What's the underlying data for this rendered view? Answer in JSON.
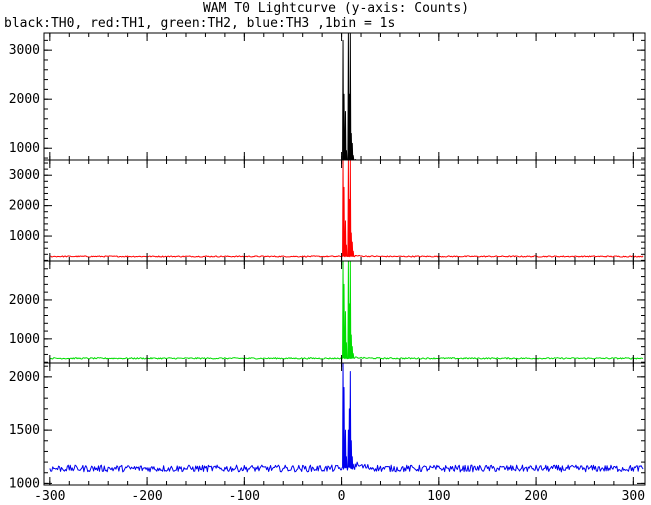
{
  "chart_data": {
    "type": "line",
    "title": "WAM T0 Lightcurve (y-axis: Counts)",
    "subtitle": "black:TH0, red:TH1, green:TH2, blue:TH3 ,1bin = 1s",
    "xlabel": "",
    "ylabel": "",
    "xlim": [
      -306,
      312
    ],
    "x_ticks": [
      -300,
      -200,
      -100,
      0,
      100,
      200,
      300
    ],
    "grid": false,
    "panels": [
      {
        "name": "TH0",
        "color": "#000000",
        "ylim": [
          760,
          3350
        ],
        "y_ticks": [
          1000,
          2000,
          3000
        ],
        "baseline": 725,
        "noise": 22,
        "peaks": [
          {
            "x": 1.5,
            "y": 3200
          },
          {
            "x": 2.5,
            "y": 2100
          },
          {
            "x": 4,
            "y": 1750
          },
          {
            "x": 5,
            "y": 950
          },
          {
            "x": 7,
            "y": 3380
          },
          {
            "x": 8,
            "y": 2100
          },
          {
            "x": 9,
            "y": 3380
          },
          {
            "x": 10,
            "y": 1300
          },
          {
            "x": 11,
            "y": 1100
          },
          {
            "x": 12,
            "y": 850
          }
        ]
      },
      {
        "name": "TH1",
        "color": "#ff0000",
        "ylim": [
          180,
          3500
        ],
        "y_ticks": [
          1000,
          2000,
          3000
        ],
        "baseline": 330,
        "noise": 20,
        "peaks": [
          {
            "x": 1.5,
            "y": 3500
          },
          {
            "x": 2.5,
            "y": 2600
          },
          {
            "x": 4,
            "y": 1500
          },
          {
            "x": 5,
            "y": 700
          },
          {
            "x": 7,
            "y": 3500
          },
          {
            "x": 8,
            "y": 2200
          },
          {
            "x": 9,
            "y": 3500
          },
          {
            "x": 10,
            "y": 1100
          },
          {
            "x": 11,
            "y": 800
          },
          {
            "x": 12,
            "y": 500
          }
        ]
      },
      {
        "name": "TH2",
        "color": "#00dd00",
        "ylim": [
          380,
          3000
        ],
        "y_ticks": [
          1000,
          2000
        ],
        "baseline": 500,
        "noise": 18,
        "peaks": [
          {
            "x": 1.5,
            "y": 3000
          },
          {
            "x": 2.5,
            "y": 2400
          },
          {
            "x": 4,
            "y": 1700
          },
          {
            "x": 5,
            "y": 900
          },
          {
            "x": 7,
            "y": 3000
          },
          {
            "x": 8,
            "y": 1900
          },
          {
            "x": 9,
            "y": 3000
          },
          {
            "x": 10,
            "y": 1100
          },
          {
            "x": 11,
            "y": 800
          },
          {
            "x": 12,
            "y": 620
          }
        ]
      },
      {
        "name": "TH3",
        "color": "#0000ee",
        "ylim": [
          985,
          2130
        ],
        "y_ticks": [
          1000,
          1500,
          2000
        ],
        "baseline": 1140,
        "noise": 32,
        "peaks": [
          {
            "x": 1.5,
            "y": 2130
          },
          {
            "x": 2.5,
            "y": 1900
          },
          {
            "x": 4,
            "y": 1500
          },
          {
            "x": 5,
            "y": 1250
          },
          {
            "x": 7,
            "y": 1500
          },
          {
            "x": 8,
            "y": 1700
          },
          {
            "x": 9,
            "y": 2050
          },
          {
            "x": 10,
            "y": 1400
          },
          {
            "x": 11,
            "y": 1250
          },
          {
            "x": 12,
            "y": 1180
          }
        ]
      }
    ]
  }
}
